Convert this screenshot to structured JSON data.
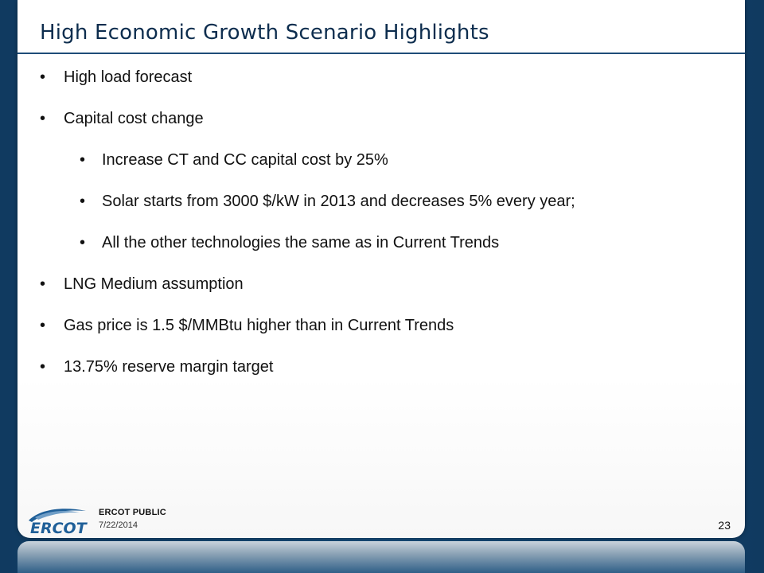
{
  "slide": {
    "title": "High Economic Growth Scenario Highlights",
    "bullets": [
      {
        "level": 1,
        "marker": "•",
        "text": "High load forecast"
      },
      {
        "level": 1,
        "marker": "•",
        "text": "Capital cost change"
      },
      {
        "level": 2,
        "marker": "•",
        "text": "Increase CT and CC capital cost by 25%"
      },
      {
        "level": 2,
        "marker": "•",
        "text": "Solar starts from 3000 $/kW in 2013 and decreases 5% every year;"
      },
      {
        "level": 2,
        "marker": "•",
        "text": "All the other technologies the same as in Current Trends"
      },
      {
        "level": 1,
        "marker": "•",
        "text": "LNG Medium assumption"
      },
      {
        "level": 1,
        "marker": "•",
        "text": "Gas price is 1.5 $/MMBtu higher than in Current Trends"
      },
      {
        "level": 1,
        "marker": "•",
        "text": "13.75% reserve margin target"
      }
    ]
  },
  "footer": {
    "logo_text": "ERCOT",
    "classification": "ERCOT PUBLIC",
    "date": "7/22/2014",
    "page_number": "23"
  },
  "colors": {
    "frame": "#0f3b63",
    "title": "#0d2d4e",
    "rule": "#1e4d78",
    "logo": "#1f5f98"
  }
}
